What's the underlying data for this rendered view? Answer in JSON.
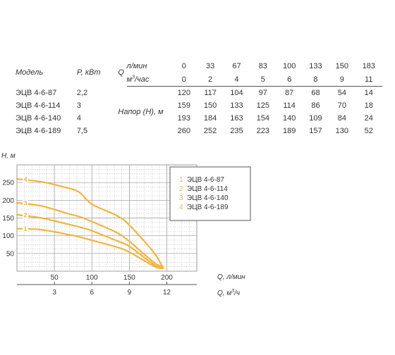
{
  "table": {
    "header": {
      "model": "Модель",
      "power": "P, кВт",
      "q": "Q",
      "unit_lmin": "л/мин",
      "unit_m3h_prefix": "м",
      "unit_m3h_sup": "3",
      "unit_m3h_suffix": "/час",
      "head_label": "Напор (H), м"
    },
    "flow_lmin": [
      "0",
      "33",
      "67",
      "83",
      "100",
      "133",
      "150",
      "183"
    ],
    "flow_m3h": [
      "0",
      "2",
      "4",
      "5",
      "6",
      "8",
      "9",
      "11"
    ],
    "rows": [
      {
        "model": "ЭЦВ 4-6-87",
        "power": "2,2",
        "heads": [
          "120",
          "117",
          "104",
          "97",
          "87",
          "68",
          "54",
          "14"
        ]
      },
      {
        "model": "ЭЦВ 4-6-114",
        "power": "3",
        "heads": [
          "159",
          "150",
          "133",
          "125",
          "114",
          "86",
          "70",
          "18"
        ]
      },
      {
        "model": "ЭЦВ 4-6-140",
        "power": "4",
        "heads": [
          "193",
          "184",
          "163",
          "154",
          "140",
          "109",
          "84",
          "24"
        ]
      },
      {
        "model": "ЭЦВ 4-6-189",
        "power": "7,5",
        "heads": [
          "260",
          "252",
          "235",
          "223",
          "189",
          "157",
          "130",
          "52"
        ]
      }
    ]
  },
  "chart_data": {
    "type": "line",
    "ylabel": "H, м",
    "xlabel": "Q, л/мин",
    "xlabel2_prefix": "Q, м",
    "xlabel2_sup": "3",
    "xlabel2_suffix": "/ч",
    "xlim": [
      0,
      240
    ],
    "ylim": [
      0,
      300
    ],
    "xticks": [
      50,
      100,
      150,
      200
    ],
    "yticks": [
      50,
      100,
      150,
      200,
      250
    ],
    "x2ticks": [
      {
        "label": "3",
        "value": 50
      },
      {
        "label": "6",
        "value": 100
      },
      {
        "label": "9",
        "value": 150
      },
      {
        "label": "12",
        "value": 200
      }
    ],
    "grid": true,
    "legend_position": "right",
    "line_color": "#F2B53A",
    "series": [
      {
        "name": "ЭЦВ 4-6-87",
        "marker": "1",
        "x": [
          0,
          33,
          67,
          83,
          100,
          133,
          150,
          183,
          195
        ],
        "y": [
          120,
          117,
          104,
          97,
          87,
          68,
          54,
          14,
          8
        ]
      },
      {
        "name": "ЭЦВ 4-6-114",
        "marker": "2",
        "x": [
          0,
          33,
          67,
          83,
          100,
          133,
          150,
          183,
          195
        ],
        "y": [
          159,
          150,
          133,
          125,
          114,
          86,
          70,
          18,
          8
        ]
      },
      {
        "name": "ЭЦВ 4-6-140",
        "marker": "3",
        "x": [
          0,
          33,
          67,
          83,
          100,
          133,
          150,
          183,
          195
        ],
        "y": [
          193,
          184,
          163,
          154,
          140,
          109,
          84,
          24,
          12
        ]
      },
      {
        "name": "ЭЦВ 4-6-189",
        "marker": "4",
        "x": [
          0,
          33,
          67,
          83,
          100,
          133,
          150,
          183,
          195
        ],
        "y": [
          260,
          252,
          235,
          223,
          189,
          157,
          130,
          52,
          8
        ]
      }
    ]
  }
}
